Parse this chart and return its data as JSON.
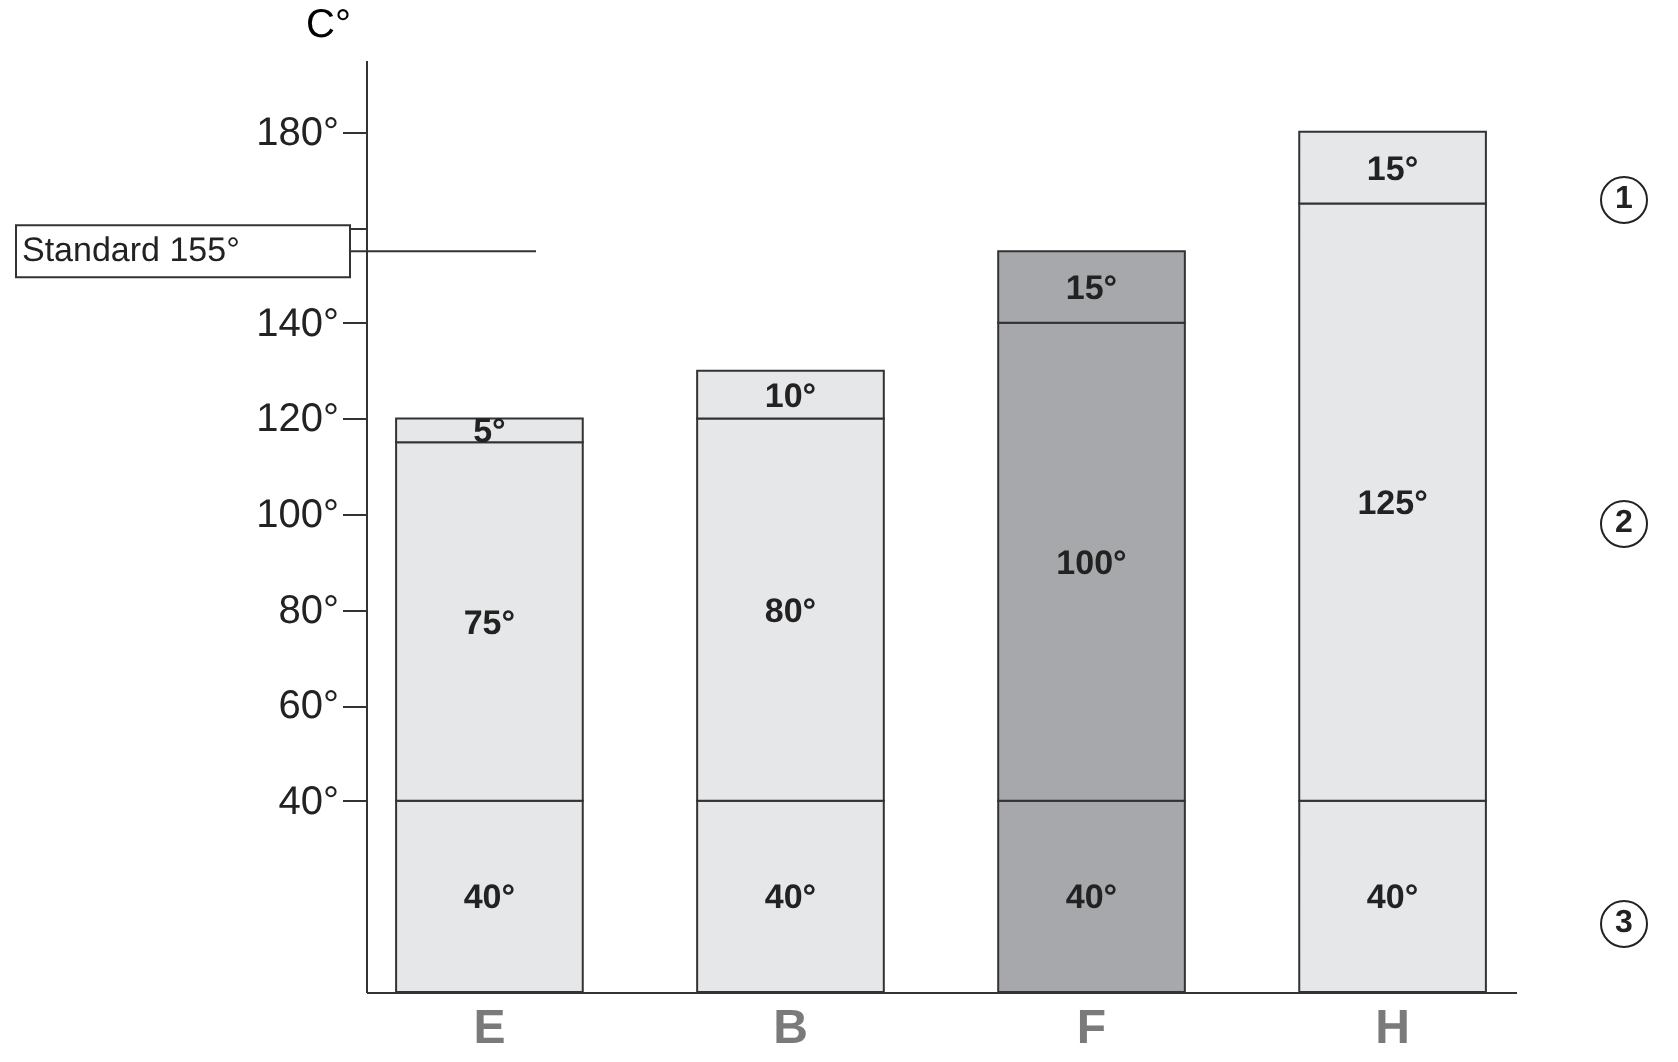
{
  "chart_data": {
    "type": "bar",
    "stacked": true,
    "ylabel": "C°",
    "categories": [
      "E",
      "B",
      "F",
      "H"
    ],
    "series": [
      {
        "colors": [
          "#e6e7e9",
          "#e6e7e9",
          "#a7a8ab",
          "#e6e7e9"
        ],
        "values": [
          40,
          40,
          40,
          40
        ],
        "value_labels": [
          "40°",
          "40°",
          "40°",
          "40°"
        ]
      },
      {
        "colors": [
          "#e6e7e9",
          "#e6e7e9",
          "#a7a8ab",
          "#e6e7e9"
        ],
        "values": [
          75,
          80,
          100,
          125
        ],
        "value_labels": [
          "75°",
          "80°",
          "100°",
          "125°"
        ]
      },
      {
        "colors": [
          "#e6e7e9",
          "#e6e7e9",
          "#a7a8ab",
          "#e6e7e9"
        ],
        "values": [
          5,
          10,
          15,
          15
        ],
        "value_labels": [
          "5°",
          "10°",
          "15°",
          "15°"
        ]
      }
    ],
    "ylim": [
      0,
      195
    ],
    "yticks": [
      {
        "value": 40,
        "label": "40°"
      },
      {
        "value": 60,
        "label": "60°"
      },
      {
        "value": 80,
        "label": "80°"
      },
      {
        "value": 100,
        "label": "100°"
      },
      {
        "value": 120,
        "label": "120°"
      },
      {
        "value": 140,
        "label": "140°"
      },
      {
        "value": 160,
        "label": null
      },
      {
        "value": 180,
        "label": "180°"
      }
    ],
    "ref_lines": [
      {
        "axis": "y",
        "value": 155,
        "label": "Standard 155°"
      }
    ],
    "annotations": [
      "1",
      "2",
      "3"
    ],
    "grid": false
  }
}
